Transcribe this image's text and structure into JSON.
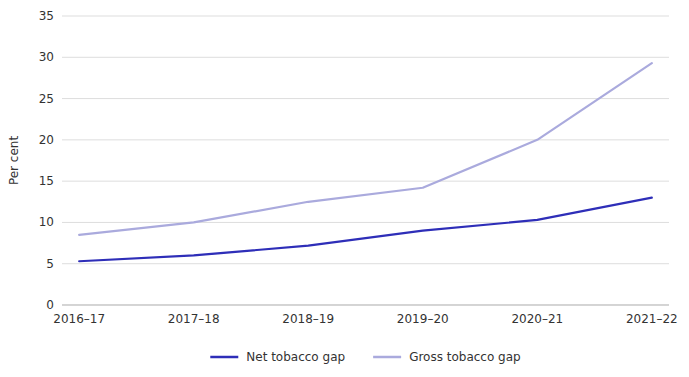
{
  "chart_data": {
    "type": "line",
    "categories": [
      "2016–17",
      "2017–18",
      "2018–19",
      "2019–20",
      "2020–21",
      "2021–22"
    ],
    "series": [
      {
        "name": "Net tobacco gap",
        "color": "#2e2eb8",
        "values": [
          5.3,
          6.0,
          7.2,
          9.0,
          10.3,
          13.0
        ]
      },
      {
        "name": "Gross tobacco gap",
        "color": "#aaaadd",
        "values": [
          8.5,
          10.0,
          12.5,
          14.2,
          20.0,
          29.3
        ]
      }
    ],
    "y_label": "Per cent",
    "ylim": [
      0,
      35
    ],
    "yticks": [
      0,
      5,
      10,
      15,
      20,
      25,
      30,
      35
    ],
    "grid": true,
    "legend": "bottom"
  }
}
